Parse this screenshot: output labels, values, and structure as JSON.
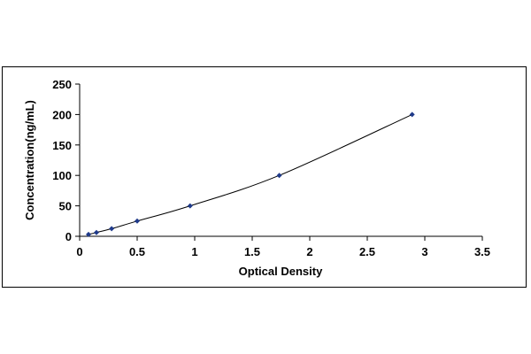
{
  "chart_data": {
    "type": "scatter",
    "title": "",
    "xlabel": "Optical Density",
    "ylabel": "Concentration(ng/mL)",
    "xlim": [
      0,
      3.5
    ],
    "ylim": [
      0,
      250
    ],
    "x_ticks": [
      "0",
      "0.5",
      "1",
      "1.5",
      "2",
      "2.5",
      "3",
      "3.5"
    ],
    "x_tick_values": [
      0,
      0.5,
      1,
      1.5,
      2,
      2.5,
      3,
      3.5
    ],
    "y_ticks": [
      "0",
      "50",
      "100",
      "150",
      "200",
      "250"
    ],
    "y_tick_values": [
      0,
      50,
      100,
      150,
      200,
      250
    ],
    "grid": false,
    "legend": "none",
    "series": [
      {
        "marker_color": "#1f3a8a",
        "line_color": "#000000",
        "marker": "diamond",
        "smooth_line": true,
        "x": [
          0.077,
          0.146,
          0.278,
          0.5,
          0.96,
          1.735,
          2.89
        ],
        "y": [
          3.13,
          6.25,
          12.5,
          25,
          50,
          100,
          200
        ]
      }
    ]
  }
}
